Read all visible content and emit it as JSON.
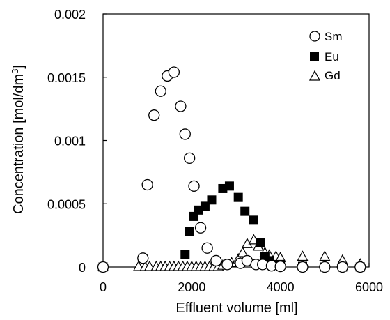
{
  "chart_data": {
    "type": "scatter",
    "title": "",
    "xlabel": "Effluent volume [ml]",
    "ylabel_main": "Concentration [mol/dm",
    "ylabel_sup": "3",
    "ylabel_end": "]",
    "xlim": [
      0,
      6000
    ],
    "ylim": [
      0,
      0.002
    ],
    "xticks": [
      "0",
      "2000",
      "4000",
      "6000"
    ],
    "yticks": [
      "0",
      "0.0005",
      "0.001",
      "0.0015",
      "0.002"
    ],
    "grid": false,
    "legend_position": "top-right",
    "series": [
      {
        "name": "Sm",
        "marker": "circle-open",
        "points": [
          [
            0,
            0
          ],
          [
            900,
            7e-05
          ],
          [
            1000,
            0.00065
          ],
          [
            1150,
            0.0012
          ],
          [
            1300,
            0.00139
          ],
          [
            1450,
            0.00151
          ],
          [
            1600,
            0.00154
          ],
          [
            1750,
            0.00127
          ],
          [
            1850,
            0.00105
          ],
          [
            1950,
            0.00086
          ],
          [
            2050,
            0.00064
          ],
          [
            2200,
            0.00031
          ],
          [
            2350,
            0.00015
          ],
          [
            2550,
            5e-05
          ],
          [
            2800,
            2e-05
          ],
          [
            3100,
            3e-05
          ],
          [
            3250,
            5e-05
          ],
          [
            3450,
            2e-05
          ],
          [
            3600,
            2e-05
          ],
          [
            3800,
            1e-05
          ],
          [
            4000,
            5e-06
          ],
          [
            4500,
            0
          ],
          [
            5000,
            0
          ],
          [
            5400,
            0
          ],
          [
            5800,
            0
          ]
        ]
      },
      {
        "name": "Eu",
        "marker": "square-filled",
        "points": [
          [
            0,
            0
          ],
          [
            1850,
            0.0001
          ],
          [
            1950,
            0.00028
          ],
          [
            2050,
            0.0004
          ],
          [
            2150,
            0.00045
          ],
          [
            2300,
            0.00048
          ],
          [
            2450,
            0.00053
          ],
          [
            2700,
            0.00062
          ],
          [
            2850,
            0.00064
          ],
          [
            3050,
            0.00055
          ],
          [
            3200,
            0.00044
          ],
          [
            3400,
            0.00037
          ],
          [
            3550,
            0.00019
          ],
          [
            3650,
            8e-05
          ],
          [
            3750,
            5e-05
          ],
          [
            4000,
            2e-05
          ],
          [
            4500,
            5e-06
          ],
          [
            5000,
            0
          ],
          [
            5400,
            0
          ],
          [
            5800,
            0
          ]
        ]
      },
      {
        "name": "Gd",
        "marker": "triangle-open",
        "points": [
          [
            0,
            0
          ],
          [
            800,
            0
          ],
          [
            950,
            0
          ],
          [
            1050,
            0
          ],
          [
            1200,
            0
          ],
          [
            1300,
            0
          ],
          [
            1400,
            0
          ],
          [
            1500,
            0
          ],
          [
            1600,
            0
          ],
          [
            1700,
            0
          ],
          [
            1800,
            0
          ],
          [
            1900,
            0
          ],
          [
            2000,
            0
          ],
          [
            2100,
            0
          ],
          [
            2200,
            0
          ],
          [
            2300,
            0
          ],
          [
            2400,
            0
          ],
          [
            2500,
            0
          ],
          [
            2600,
            0
          ],
          [
            2700,
            1e-05
          ],
          [
            2900,
            3e-05
          ],
          [
            3050,
            6e-05
          ],
          [
            3150,
            0.00011
          ],
          [
            3250,
            0.00018
          ],
          [
            3400,
            0.00021
          ],
          [
            3500,
            0.00016
          ],
          [
            3650,
            0.00011
          ],
          [
            3750,
            9e-05
          ],
          [
            3900,
            8e-05
          ],
          [
            4000,
            7e-05
          ],
          [
            4500,
            8e-05
          ],
          [
            5000,
            8e-05
          ],
          [
            5400,
            5e-05
          ],
          [
            5800,
            2e-05
          ]
        ]
      }
    ]
  }
}
